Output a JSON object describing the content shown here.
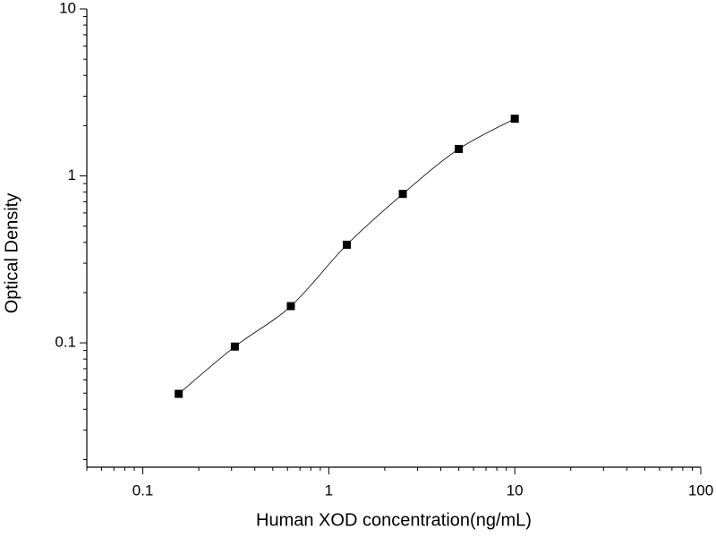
{
  "chart_data": {
    "type": "scatter",
    "x_label": "Human XOD concentration(ng/mL)",
    "y_label": "Optical Density",
    "log_x": true,
    "log_y": true,
    "grid": false,
    "xlim": [
      0.05,
      100
    ],
    "xticks": [
      0.1,
      1,
      10,
      100
    ],
    "ylim": [
      0.018,
      10
    ],
    "yticks": [
      0.1,
      1,
      10
    ],
    "series": [
      {
        "color": "#000000",
        "x": [
          0.156,
          0.3125,
          0.625,
          1.25,
          2.5,
          5,
          10
        ],
        "values": [
          0.0495,
          0.095,
          0.166,
          0.387,
          0.78,
          1.45,
          2.2
        ]
      }
    ]
  }
}
